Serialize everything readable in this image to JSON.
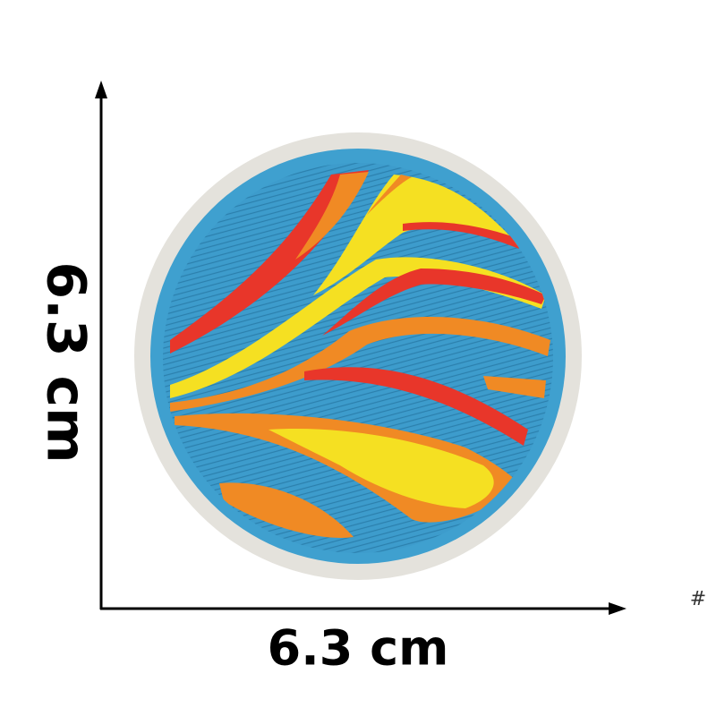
{
  "labels": {
    "height": "6.3 cm",
    "width": "6.3 cm",
    "mark": "#"
  }
}
